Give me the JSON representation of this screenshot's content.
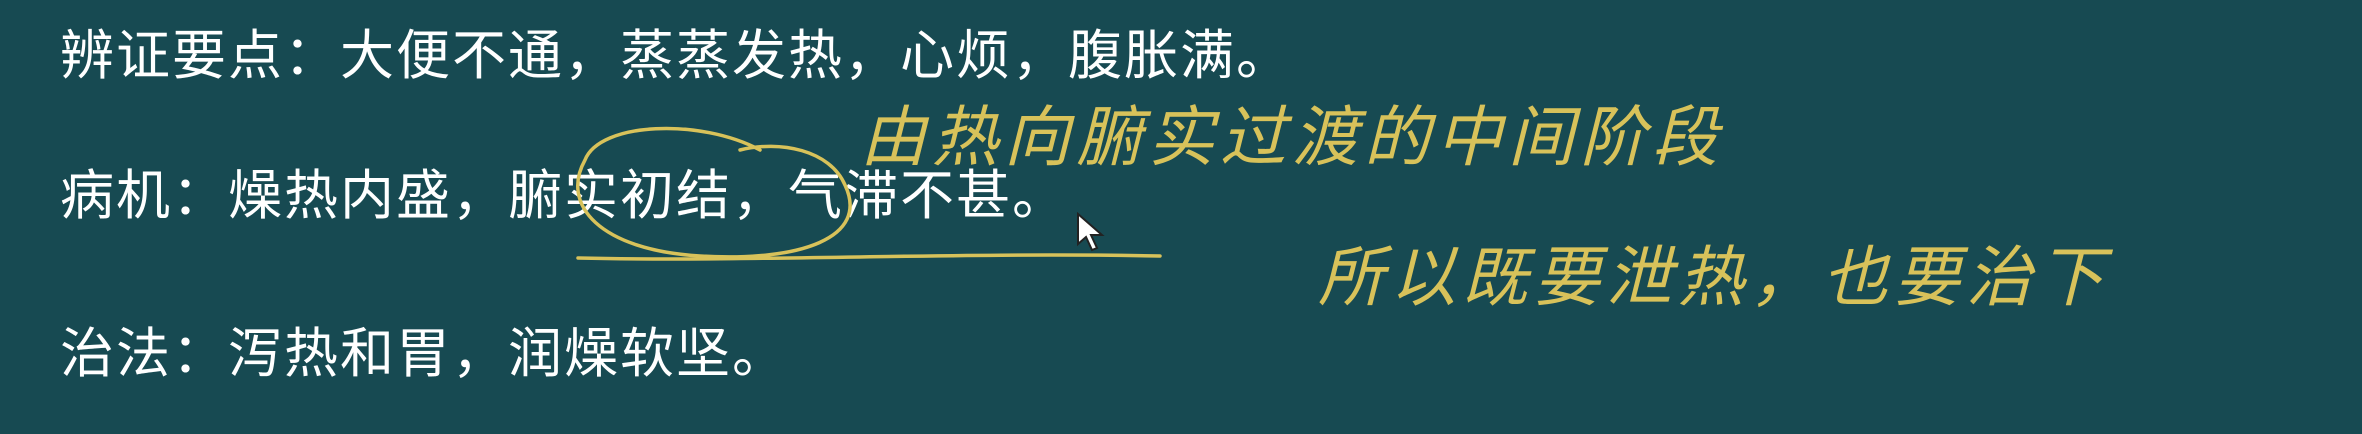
{
  "slide": {
    "line1": "辨证要点：大便不通，蒸蒸发热，心烦，腹胀满。",
    "line2": {
      "prefix": "病机：燥热内盛，",
      "highlight": "腑实初结",
      "suffix": "，气滞不甚。"
    },
    "line3": "治法：泻热和胃，润燥软坚。"
  },
  "annotations": {
    "note1": "由热向腑实过渡的中间阶段",
    "note2": "所以既要泄热，也要治下"
  },
  "colors": {
    "background": "#174a52",
    "text": "#ffffff",
    "ink": "#d8c25a"
  },
  "icons": {
    "cursor": "mouse-pointer-icon"
  }
}
